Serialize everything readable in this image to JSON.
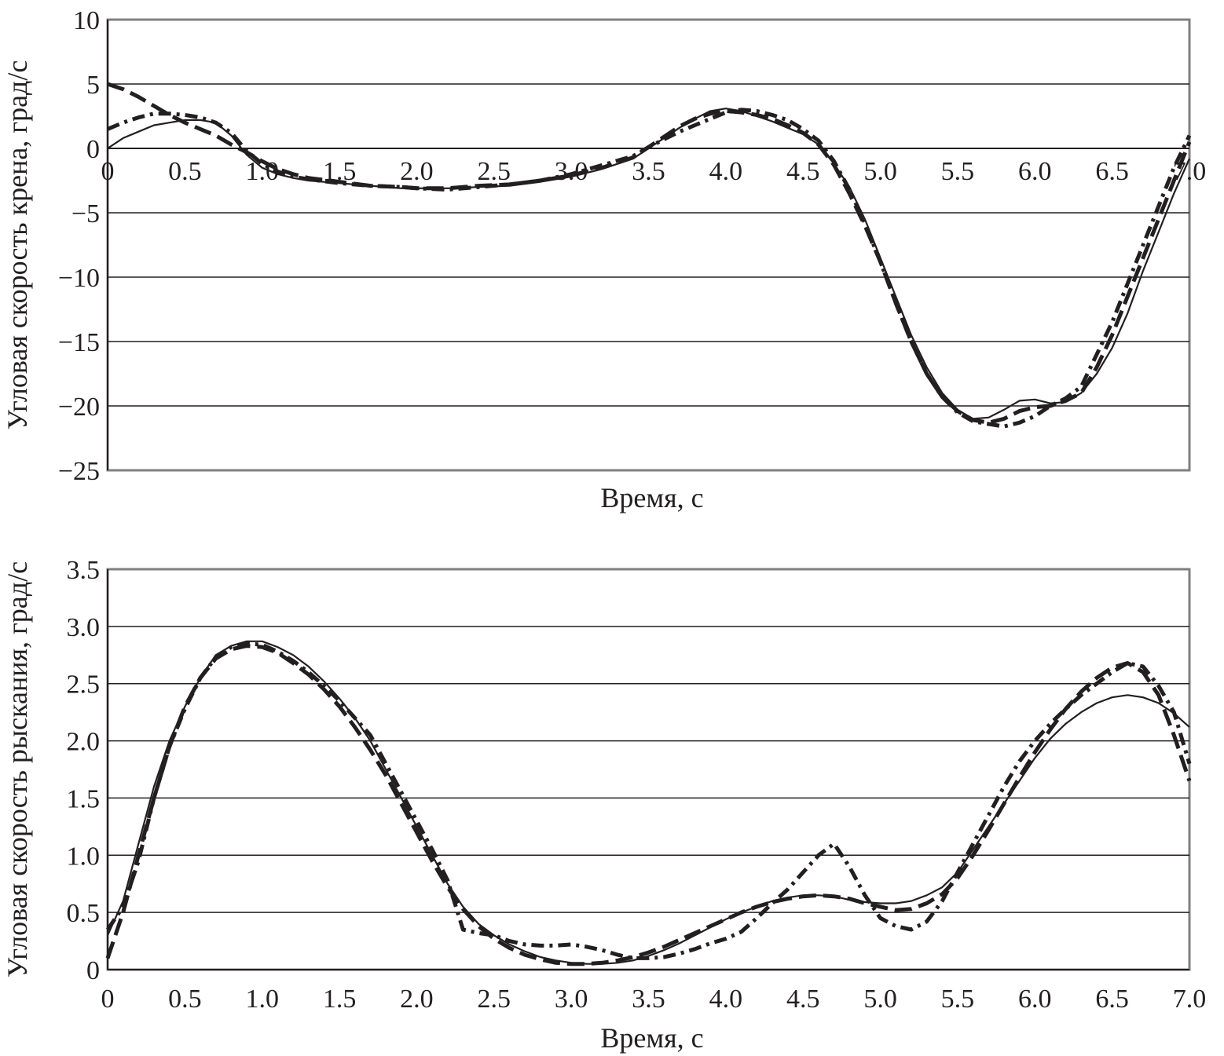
{
  "chart_data": [
    {
      "type": "line",
      "title": "",
      "xlabel": "Время, с",
      "ylabel": "Угловая скорость крена, град/с",
      "xlim": [
        0,
        7
      ],
      "ylim": [
        -25,
        10
      ],
      "grid": "horizontal",
      "legend": "none",
      "x_tick_labels": [
        "0",
        "0.5",
        "1.0",
        "1.5",
        "2.0",
        "2.5",
        "3.0",
        "3.5",
        "4.0",
        "4.5",
        "5.0",
        "5.5",
        "6.0",
        "6.5",
        "7.0"
      ],
      "y_tick_labels": [
        "10",
        "5",
        "0",
        "−5",
        "−10",
        "−15",
        "−20",
        "−25"
      ],
      "x_tick_position": "zero-line",
      "series": [
        {
          "style": "solid",
          "x": [
            0,
            0.1,
            0.2,
            0.3,
            0.4,
            0.5,
            0.6,
            0.7,
            0.8,
            0.9,
            1.0,
            1.1,
            1.2,
            1.3,
            1.5,
            1.7,
            1.9,
            2.0,
            2.2,
            2.4,
            2.6,
            2.8,
            3.0,
            3.2,
            3.4,
            3.5,
            3.6,
            3.7,
            3.8,
            3.9,
            4.0,
            4.1,
            4.2,
            4.3,
            4.4,
            4.5,
            4.6,
            4.7,
            4.8,
            4.9,
            5.0,
            5.1,
            5.2,
            5.3,
            5.4,
            5.5,
            5.6,
            5.7,
            5.8,
            5.9,
            6.0,
            6.1,
            6.2,
            6.3,
            6.4,
            6.5,
            6.6,
            6.7,
            6.8,
            6.9,
            7.0
          ],
          "y": [
            0,
            0.8,
            1.3,
            1.8,
            2.0,
            2.2,
            2.2,
            2.0,
            1.0,
            -0.5,
            -1.5,
            -2.0,
            -2.3,
            -2.5,
            -2.7,
            -2.9,
            -3.1,
            -3.1,
            -3.1,
            -3.0,
            -2.9,
            -2.6,
            -2.2,
            -1.6,
            -0.8,
            0.0,
            0.8,
            1.6,
            2.3,
            2.9,
            3.1,
            2.9,
            2.5,
            2.1,
            1.6,
            1.1,
            0.3,
            -1.2,
            -3.0,
            -5.5,
            -8.5,
            -11.5,
            -14.5,
            -17.0,
            -19.0,
            -20.3,
            -21.0,
            -20.9,
            -20.3,
            -19.6,
            -19.5,
            -19.8,
            -19.7,
            -19.0,
            -17.5,
            -15.5,
            -12.8,
            -9.5,
            -6.5,
            -3.5,
            -0.8
          ]
        },
        {
          "style": "dashed",
          "x": [
            0,
            0.1,
            0.2,
            0.3,
            0.4,
            0.5,
            0.6,
            0.7,
            0.8,
            0.9,
            1.0,
            1.1,
            1.2,
            1.3,
            1.5,
            1.7,
            1.9,
            2.0,
            2.2,
            2.4,
            2.6,
            2.8,
            3.0,
            3.2,
            3.4,
            3.5,
            3.6,
            3.7,
            3.8,
            3.9,
            4.0,
            4.1,
            4.2,
            4.3,
            4.4,
            4.5,
            4.6,
            4.7,
            4.8,
            4.9,
            5.0,
            5.1,
            5.2,
            5.3,
            5.4,
            5.5,
            5.6,
            5.7,
            5.8,
            5.9,
            6.0,
            6.1,
            6.2,
            6.3,
            6.4,
            6.5,
            6.6,
            6.7,
            6.8,
            6.9,
            7.0
          ],
          "y": [
            5.0,
            4.6,
            4.0,
            3.3,
            2.6,
            2.0,
            1.5,
            1.0,
            0.3,
            -0.3,
            -1.0,
            -1.6,
            -2.0,
            -2.3,
            -2.6,
            -2.9,
            -3.0,
            -3.1,
            -3.1,
            -2.9,
            -2.8,
            -2.5,
            -2.1,
            -1.5,
            -0.7,
            0.1,
            0.9,
            1.7,
            2.3,
            2.7,
            2.9,
            2.8,
            2.6,
            2.3,
            1.8,
            1.2,
            0.3,
            -1.3,
            -3.5,
            -6.0,
            -8.8,
            -12.0,
            -15.0,
            -17.5,
            -19.3,
            -20.4,
            -21.1,
            -21.3,
            -21.0,
            -20.4,
            -20.1,
            -20.0,
            -19.6,
            -19.0,
            -17.0,
            -14.5,
            -11.5,
            -8.5,
            -5.5,
            -2.5,
            0.5
          ]
        },
        {
          "style": "dash-dot",
          "x": [
            0,
            0.1,
            0.2,
            0.3,
            0.4,
            0.5,
            0.6,
            0.7,
            0.8,
            0.9,
            1.0,
            1.1,
            1.2,
            1.3,
            1.5,
            1.7,
            1.9,
            2.0,
            2.2,
            2.4,
            2.6,
            2.8,
            3.0,
            3.2,
            3.4,
            3.5,
            3.6,
            3.7,
            3.8,
            3.9,
            4.0,
            4.1,
            4.2,
            4.3,
            4.4,
            4.5,
            4.6,
            4.7,
            4.8,
            4.9,
            5.0,
            5.1,
            5.2,
            5.3,
            5.4,
            5.5,
            5.6,
            5.7,
            5.8,
            5.9,
            6.0,
            6.1,
            6.2,
            6.3,
            6.4,
            6.5,
            6.6,
            6.7,
            6.8,
            6.9,
            7.0
          ],
          "y": [
            1.5,
            2.0,
            2.4,
            2.7,
            2.7,
            2.6,
            2.4,
            2.0,
            1.2,
            -0.2,
            -1.2,
            -1.8,
            -2.2,
            -2.4,
            -2.7,
            -2.9,
            -3.0,
            -3.1,
            -3.2,
            -3.0,
            -2.8,
            -2.5,
            -2.0,
            -1.3,
            -0.6,
            0.1,
            0.7,
            1.3,
            1.8,
            2.3,
            2.8,
            3.0,
            2.9,
            2.6,
            2.2,
            1.5,
            0.6,
            -1.0,
            -3.2,
            -5.8,
            -8.8,
            -12.0,
            -15.0,
            -17.5,
            -19.3,
            -20.5,
            -21.2,
            -21.4,
            -21.6,
            -21.3,
            -20.8,
            -20.0,
            -19.4,
            -18.5,
            -16.0,
            -13.5,
            -10.5,
            -7.5,
            -4.5,
            -1.5,
            1.0
          ]
        }
      ]
    },
    {
      "type": "line",
      "title": "",
      "xlabel": "Время, с",
      "ylabel": "Угловая скорость рыскания, град/с",
      "xlim": [
        0,
        7
      ],
      "ylim": [
        0,
        3.5
      ],
      "grid": "horizontal",
      "legend": "none",
      "x_tick_labels": [
        "0",
        "0.5",
        "1.0",
        "1.5",
        "2.0",
        "2.5",
        "3.0",
        "3.5",
        "4.0",
        "4.5",
        "5.0",
        "5.5",
        "6.0",
        "6.5",
        "7.0"
      ],
      "y_tick_labels": [
        "3.5",
        "3.0",
        "2.5",
        "2.0",
        "1.5",
        "1.0",
        "0.5",
        "0"
      ],
      "x_tick_position": "bottom",
      "series": [
        {
          "style": "solid",
          "x": [
            0,
            0.1,
            0.2,
            0.3,
            0.4,
            0.5,
            0.6,
            0.7,
            0.8,
            0.9,
            1.0,
            1.1,
            1.2,
            1.3,
            1.4,
            1.5,
            1.6,
            1.7,
            1.8,
            1.9,
            2.0,
            2.1,
            2.2,
            2.3,
            2.4,
            2.5,
            2.6,
            2.7,
            2.8,
            2.9,
            3.0,
            3.1,
            3.2,
            3.3,
            3.4,
            3.5,
            3.6,
            3.7,
            3.8,
            3.9,
            4.0,
            4.1,
            4.2,
            4.3,
            4.4,
            4.5,
            4.6,
            4.7,
            4.8,
            4.9,
            5.0,
            5.1,
            5.2,
            5.3,
            5.4,
            5.5,
            5.6,
            5.7,
            5.8,
            5.9,
            6.0,
            6.1,
            6.2,
            6.3,
            6.4,
            6.5,
            6.6,
            6.7,
            6.8,
            6.9,
            7.0
          ],
          "y": [
            0.3,
            0.6,
            1.1,
            1.6,
            2.0,
            2.3,
            2.55,
            2.75,
            2.83,
            2.87,
            2.87,
            2.82,
            2.75,
            2.65,
            2.52,
            2.37,
            2.2,
            2.0,
            1.75,
            1.5,
            1.25,
            1.0,
            0.75,
            0.55,
            0.4,
            0.3,
            0.22,
            0.16,
            0.11,
            0.08,
            0.06,
            0.05,
            0.05,
            0.06,
            0.08,
            0.12,
            0.17,
            0.23,
            0.3,
            0.37,
            0.44,
            0.5,
            0.55,
            0.6,
            0.63,
            0.65,
            0.65,
            0.64,
            0.61,
            0.59,
            0.58,
            0.58,
            0.6,
            0.65,
            0.72,
            0.85,
            1.05,
            1.25,
            1.45,
            1.65,
            1.85,
            2.02,
            2.15,
            2.25,
            2.33,
            2.38,
            2.4,
            2.38,
            2.33,
            2.24,
            2.12
          ]
        },
        {
          "style": "dashed",
          "x": [
            0,
            0.1,
            0.2,
            0.3,
            0.4,
            0.5,
            0.6,
            0.7,
            0.8,
            0.9,
            1.0,
            1.1,
            1.2,
            1.3,
            1.4,
            1.5,
            1.6,
            1.7,
            1.8,
            1.9,
            2.0,
            2.1,
            2.2,
            2.3,
            2.4,
            2.5,
            2.6,
            2.7,
            2.8,
            2.9,
            3.0,
            3.1,
            3.2,
            3.3,
            3.4,
            3.5,
            3.6,
            3.7,
            3.8,
            3.9,
            4.0,
            4.1,
            4.2,
            4.3,
            4.4,
            4.5,
            4.6,
            4.7,
            4.8,
            4.9,
            5.0,
            5.1,
            5.2,
            5.3,
            5.4,
            5.5,
            5.6,
            5.7,
            5.8,
            5.9,
            6.0,
            6.1,
            6.2,
            6.3,
            6.4,
            6.5,
            6.6,
            6.7,
            6.8,
            6.9,
            7.0
          ],
          "y": [
            0.1,
            0.5,
            1.0,
            1.5,
            1.95,
            2.3,
            2.55,
            2.72,
            2.8,
            2.83,
            2.82,
            2.77,
            2.68,
            2.58,
            2.45,
            2.3,
            2.12,
            1.92,
            1.7,
            1.45,
            1.2,
            0.95,
            0.72,
            0.53,
            0.38,
            0.27,
            0.19,
            0.13,
            0.09,
            0.06,
            0.05,
            0.05,
            0.06,
            0.08,
            0.11,
            0.15,
            0.2,
            0.26,
            0.32,
            0.38,
            0.44,
            0.5,
            0.55,
            0.59,
            0.62,
            0.64,
            0.65,
            0.64,
            0.62,
            0.58,
            0.55,
            0.52,
            0.53,
            0.58,
            0.66,
            0.8,
            1.0,
            1.22,
            1.45,
            1.68,
            1.9,
            2.1,
            2.28,
            2.43,
            2.55,
            2.64,
            2.68,
            2.6,
            2.4,
            2.05,
            1.65
          ]
        },
        {
          "style": "dash-dot",
          "x": [
            0,
            0.1,
            0.2,
            0.3,
            0.4,
            0.5,
            0.6,
            0.7,
            0.8,
            0.9,
            1.0,
            1.1,
            1.2,
            1.3,
            1.4,
            1.5,
            1.6,
            1.7,
            1.8,
            1.9,
            2.0,
            2.1,
            2.2,
            2.3,
            2.4,
            2.5,
            2.6,
            2.7,
            2.8,
            2.9,
            3.0,
            3.1,
            3.2,
            3.3,
            3.4,
            3.5,
            3.6,
            3.7,
            3.8,
            3.9,
            4.0,
            4.1,
            4.2,
            4.3,
            4.4,
            4.5,
            4.6,
            4.7,
            4.8,
            4.9,
            5.0,
            5.1,
            5.2,
            5.3,
            5.4,
            5.5,
            5.6,
            5.7,
            5.8,
            5.9,
            6.0,
            6.1,
            6.2,
            6.3,
            6.4,
            6.5,
            6.6,
            6.7,
            6.8,
            6.9,
            7.0
          ],
          "y": [
            0.35,
            0.55,
            0.95,
            1.5,
            1.95,
            2.28,
            2.55,
            2.73,
            2.82,
            2.85,
            2.84,
            2.78,
            2.7,
            2.6,
            2.48,
            2.35,
            2.2,
            2.05,
            1.8,
            1.55,
            1.3,
            1.05,
            0.78,
            0.35,
            0.32,
            0.3,
            0.25,
            0.22,
            0.21,
            0.21,
            0.22,
            0.2,
            0.17,
            0.13,
            0.1,
            0.1,
            0.11,
            0.14,
            0.18,
            0.23,
            0.27,
            0.33,
            0.45,
            0.58,
            0.7,
            0.85,
            1.0,
            1.1,
            0.9,
            0.65,
            0.45,
            0.38,
            0.35,
            0.42,
            0.6,
            0.85,
            1.1,
            1.35,
            1.6,
            1.82,
            2.0,
            2.15,
            2.28,
            2.4,
            2.5,
            2.6,
            2.68,
            2.65,
            2.48,
            2.25,
            1.8
          ]
        }
      ]
    }
  ]
}
